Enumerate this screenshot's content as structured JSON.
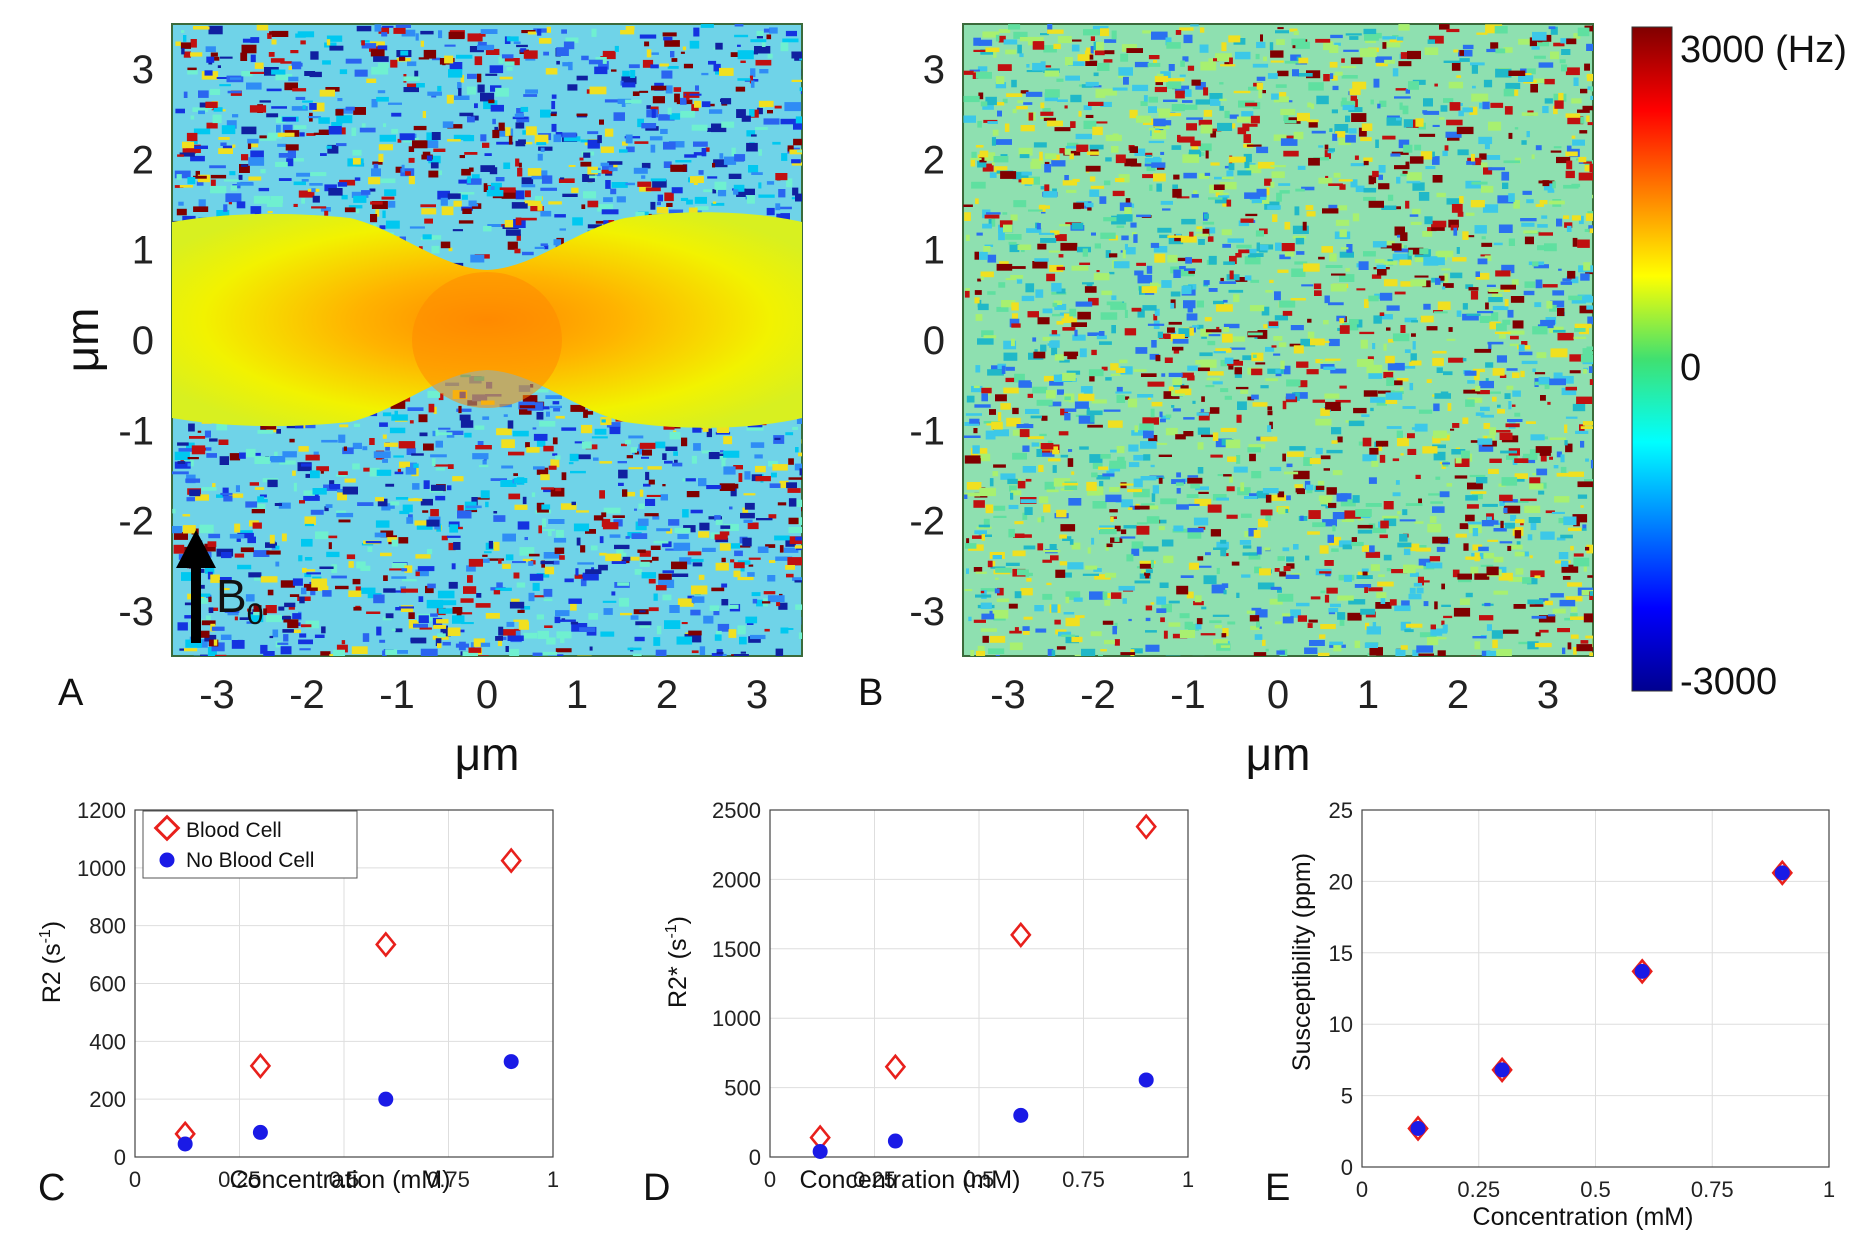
{
  "chart_data": [
    {
      "panel": "A",
      "type": "heatmap",
      "xlabel": "μm",
      "ylabel": "μm",
      "xlim": [
        -3.5,
        3.5
      ],
      "ylim": [
        -3.5,
        3.5
      ],
      "xticks": [
        -3,
        -2,
        -1,
        0,
        1,
        2,
        3
      ],
      "yticks": [
        3,
        2,
        1,
        0,
        -1,
        -2,
        -3
      ],
      "annotation": {
        "arrow": "B",
        "subscript": "0"
      },
      "colorbar": {
        "min_label": "-3000",
        "mid_label": "0",
        "max_label": "3000 (Hz)",
        "min": -3000,
        "max": 3000
      }
    },
    {
      "panel": "B",
      "type": "heatmap",
      "xlabel": "μm",
      "xlim": [
        -3.5,
        3.5
      ],
      "ylim": [
        -3.5,
        3.5
      ],
      "xticks": [
        -3,
        -2,
        -1,
        0,
        1,
        2,
        3
      ],
      "yticks": [
        3,
        2,
        1,
        0,
        -1,
        -2,
        -3
      ]
    },
    {
      "panel": "C",
      "type": "scatter",
      "xlabel": "Concentration (mM)",
      "ylabel": "R2 (s",
      "ylabel_sup": "-1",
      "ylabel_end": ")",
      "xlim": [
        0,
        1
      ],
      "ylim": [
        0,
        1200
      ],
      "xticks": [
        0,
        0.25,
        0.5,
        0.75,
        1
      ],
      "xtick_labels": [
        "0",
        "0.25",
        "0.5",
        "0.75",
        "1"
      ],
      "yticks": [
        0,
        200,
        400,
        600,
        800,
        1000,
        1200
      ],
      "legend": [
        "Blood Cell",
        "No Blood Cell"
      ],
      "series": [
        {
          "name": "Blood Cell",
          "marker": "diamond",
          "x": [
            0.12,
            0.3,
            0.6,
            0.9
          ],
          "y": [
            80,
            315,
            735,
            1025
          ]
        },
        {
          "name": "No Blood Cell",
          "marker": "dot",
          "x": [
            0.12,
            0.3,
            0.6,
            0.9
          ],
          "y": [
            45,
            85,
            200,
            330
          ]
        }
      ]
    },
    {
      "panel": "D",
      "type": "scatter",
      "xlabel": "Concentration (mM)",
      "ylabel": "R2* (s",
      "ylabel_sup": "-1",
      "ylabel_end": ")",
      "xlim": [
        0,
        1
      ],
      "ylim": [
        0,
        2500
      ],
      "xticks": [
        0,
        0.25,
        0.5,
        0.75,
        1
      ],
      "xtick_labels": [
        "0",
        "0.25",
        "0.5",
        "0.75",
        "1"
      ],
      "yticks": [
        0,
        500,
        1000,
        1500,
        2000,
        2500
      ],
      "series": [
        {
          "name": "Blood Cell",
          "marker": "diamond",
          "x": [
            0.12,
            0.3,
            0.6,
            0.9
          ],
          "y": [
            140,
            650,
            1600,
            2380
          ]
        },
        {
          "name": "No Blood Cell",
          "marker": "dot",
          "x": [
            0.12,
            0.3,
            0.6,
            0.9
          ],
          "y": [
            40,
            115,
            300,
            555
          ]
        }
      ]
    },
    {
      "panel": "E",
      "type": "scatter",
      "xlabel": "Concentration (mM)",
      "ylabel": "Susceptibility (ppm)",
      "xlim": [
        0,
        1
      ],
      "ylim": [
        0,
        25
      ],
      "xticks": [
        0,
        0.25,
        0.5,
        0.75,
        1
      ],
      "xtick_labels": [
        "0",
        "0.25",
        "0.5",
        "0.75",
        "1"
      ],
      "yticks": [
        0,
        5,
        10,
        15,
        20,
        25
      ],
      "series": [
        {
          "name": "Blood Cell",
          "marker": "diamond",
          "x": [
            0.12,
            0.3,
            0.6,
            0.9
          ],
          "y": [
            2.7,
            6.8,
            13.7,
            20.6
          ]
        },
        {
          "name": "No Blood Cell",
          "marker": "dot",
          "x": [
            0.12,
            0.3,
            0.6,
            0.9
          ],
          "y": [
            2.7,
            6.8,
            13.7,
            20.6
          ]
        }
      ]
    }
  ],
  "colors": {
    "blood_cell": "#e8201c",
    "no_blood_cell": "#1a1ae6",
    "grid": "#dedede",
    "axis": "#444444"
  }
}
